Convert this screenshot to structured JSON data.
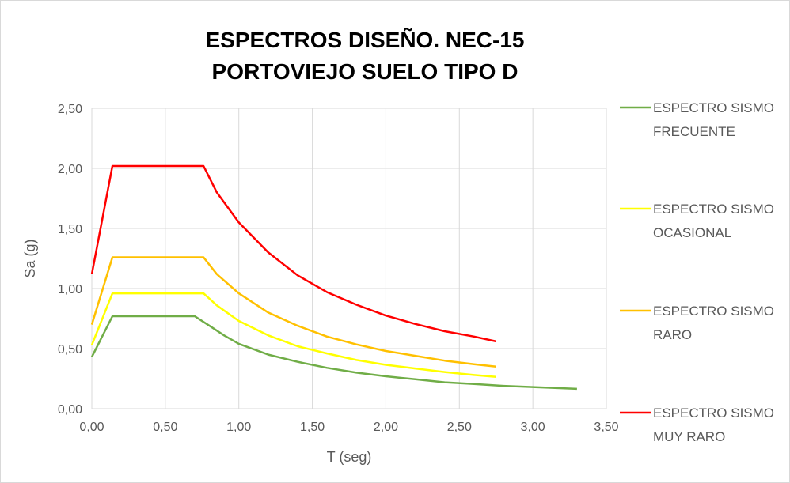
{
  "chart_data": {
    "type": "line",
    "title_lines": [
      "ESPECTROS DISEÑO. NEC-15",
      "PORTOVIEJO SUELO TIPO D"
    ],
    "xlabel": "T (seg)",
    "ylabel": "Sa (g)",
    "xlim": [
      0,
      3.5
    ],
    "ylim": [
      0,
      2.5
    ],
    "x_ticks": [
      "0,00",
      "0,50",
      "1,00",
      "1,50",
      "2,00",
      "2,50",
      "3,00",
      "3,50"
    ],
    "y_ticks": [
      "0,00",
      "0,50",
      "1,00",
      "1,50",
      "2,00",
      "2,50"
    ],
    "grid": "vertical and horizontal major gridlines",
    "legend_position": "right",
    "series": [
      {
        "name": "ESPECTRO SISMO FRECUENTE",
        "name_lines": [
          "ESPECTRO SISMO",
          "FRECUENTE"
        ],
        "color": "#70ad47",
        "x": [
          0,
          0.14,
          0.7,
          0.8,
          0.9,
          1.0,
          1.2,
          1.4,
          1.6,
          1.8,
          2.0,
          2.2,
          2.4,
          2.6,
          2.8,
          3.0,
          3.3
        ],
        "y": [
          0.43,
          0.77,
          0.77,
          0.69,
          0.61,
          0.54,
          0.45,
          0.39,
          0.34,
          0.3,
          0.27,
          0.245,
          0.22,
          0.205,
          0.19,
          0.18,
          0.165
        ]
      },
      {
        "name": "ESPECTRO SISMO OCASIONAL",
        "name_lines": [
          "ESPECTRO SISMO",
          "OCASIONAL"
        ],
        "color": "#ffff00",
        "x": [
          0,
          0.14,
          0.76,
          0.85,
          1.0,
          1.2,
          1.4,
          1.6,
          1.8,
          2.0,
          2.2,
          2.4,
          2.6,
          2.75
        ],
        "y": [
          0.53,
          0.96,
          0.96,
          0.86,
          0.73,
          0.61,
          0.52,
          0.46,
          0.405,
          0.365,
          0.335,
          0.305,
          0.28,
          0.265
        ]
      },
      {
        "name": "ESPECTRO SISMO RARO",
        "name_lines": [
          "ESPECTRO SISMO",
          "RARO"
        ],
        "color": "#ffc000",
        "x": [
          0,
          0.14,
          0.76,
          0.85,
          1.0,
          1.2,
          1.4,
          1.6,
          1.8,
          2.0,
          2.2,
          2.4,
          2.6,
          2.75
        ],
        "y": [
          0.7,
          1.26,
          1.26,
          1.12,
          0.96,
          0.8,
          0.69,
          0.6,
          0.535,
          0.48,
          0.44,
          0.4,
          0.37,
          0.35
        ]
      },
      {
        "name": "ESPECTRO SISMO MUY RARO",
        "name_lines": [
          "ESPECTRO SISMO",
          "MUY RARO"
        ],
        "color": "#ff0000",
        "x": [
          0,
          0.14,
          0.76,
          0.85,
          1.0,
          1.2,
          1.4,
          1.6,
          1.8,
          2.0,
          2.2,
          2.4,
          2.6,
          2.75
        ],
        "y": [
          1.12,
          2.02,
          2.02,
          1.8,
          1.55,
          1.3,
          1.11,
          0.97,
          0.865,
          0.775,
          0.705,
          0.645,
          0.6,
          0.56
        ]
      }
    ]
  }
}
